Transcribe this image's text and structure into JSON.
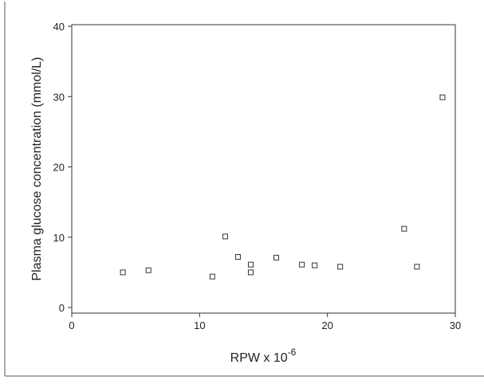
{
  "chart_data": {
    "type": "scatter",
    "title": "",
    "xlabel_text": "RPW x 10",
    "xlabel_superscript": "-6",
    "ylabel": "Plasma glucose concentration (mmol/L)",
    "xlim": [
      0,
      30
    ],
    "ylim": [
      0,
      40
    ],
    "x_ticks": [
      0,
      10,
      20,
      30
    ],
    "y_ticks": [
      0,
      10,
      20,
      30,
      40
    ],
    "grid": false,
    "marker": "open-square",
    "points": [
      {
        "x": 4,
        "y": 5.0
      },
      {
        "x": 6,
        "y": 5.3
      },
      {
        "x": 11,
        "y": 4.4
      },
      {
        "x": 12,
        "y": 10.1
      },
      {
        "x": 13,
        "y": 7.2
      },
      {
        "x": 14,
        "y": 6.1
      },
      {
        "x": 14,
        "y": 5.0
      },
      {
        "x": 16,
        "y": 7.1
      },
      {
        "x": 18,
        "y": 6.1
      },
      {
        "x": 19,
        "y": 6.0
      },
      {
        "x": 21,
        "y": 5.8
      },
      {
        "x": 26,
        "y": 11.2
      },
      {
        "x": 27,
        "y": 5.8
      },
      {
        "x": 29,
        "y": 29.9
      }
    ],
    "colors": {
      "axis": "#333333",
      "marker": "#333333",
      "frame": "#555555"
    }
  }
}
